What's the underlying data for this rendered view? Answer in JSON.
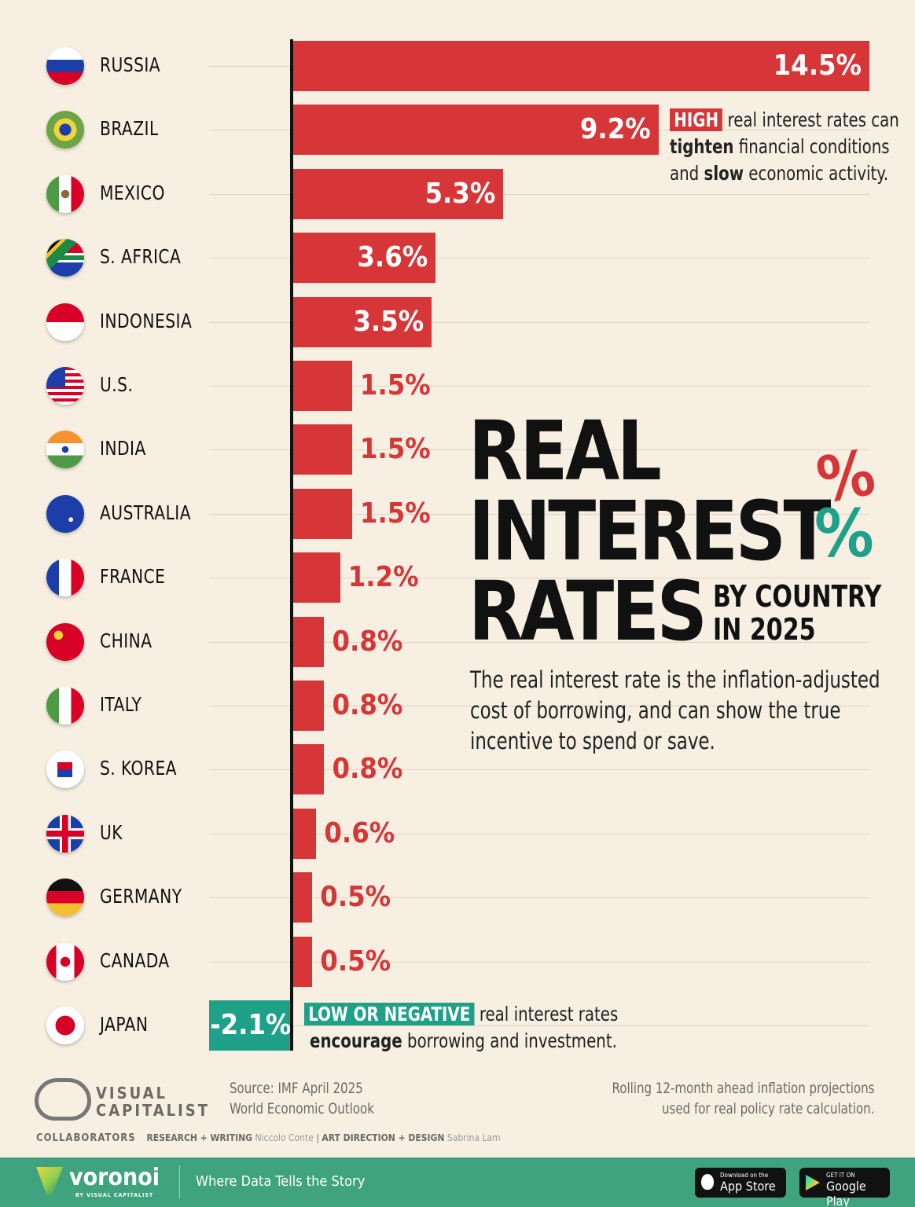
{
  "chart_data": {
    "type": "bar",
    "orientation": "horizontal",
    "title": "REAL INTEREST RATES",
    "subtitle": "BY COUNTRY IN 2025",
    "categories": [
      "RUSSIA",
      "BRAZIL",
      "MEXICO",
      "S. AFRICA",
      "INDONESIA",
      "U.S.",
      "INDIA",
      "AUSTRALIA",
      "FRANCE",
      "CHINA",
      "ITALY",
      "S. KOREA",
      "UK",
      "GERMANY",
      "CANADA",
      "JAPAN"
    ],
    "values": [
      14.5,
      9.2,
      5.3,
      3.6,
      3.5,
      1.5,
      1.5,
      1.5,
      1.2,
      0.8,
      0.8,
      0.8,
      0.6,
      0.5,
      0.5,
      -2.1
    ],
    "labels": [
      "14.5%",
      "9.2%",
      "5.3%",
      "3.6%",
      "3.5%",
      "1.5%",
      "1.5%",
      "1.5%",
      "1.2%",
      "0.8%",
      "0.8%",
      "0.8%",
      "0.6%",
      "0.5%",
      "0.5%",
      "-2.1%"
    ],
    "flags": [
      "russia",
      "brazil",
      "mexico",
      "south-africa",
      "indonesia",
      "usa",
      "india",
      "australia",
      "france",
      "china",
      "italy",
      "south-korea",
      "uk",
      "germany",
      "canada",
      "japan"
    ],
    "xlim": [
      -2.1,
      14.5
    ],
    "colors": {
      "positive": "#d63638",
      "negative": "#1fa088"
    }
  },
  "title": {
    "line1": "REAL",
    "line2": "INTEREST",
    "line3": "RATES",
    "by": "BY COUNTRY",
    "year": "IN 2025",
    "pct": "%"
  },
  "description": "The real interest rate is the inflation-adjusted cost of borrowing, and can show the true incentive to spend or save.",
  "desc_lines": [
    "The real interest rate is the inflation-adjusted",
    "cost of borrowing, and can show the true",
    "incentive to spend or save."
  ],
  "high_note": {
    "tag": "HIGH",
    "l1": "real interest rates can",
    "b2": "tighten",
    "l2": "financial conditions",
    "l3a": "and",
    "b3": "slow",
    "l3": "economic activity."
  },
  "low_note": {
    "tag": "LOW OR NEGATIVE",
    "l1": "real interest rates",
    "b2": "encourage",
    "l2": "borrowing and investment."
  },
  "footer": {
    "logo": "VISUAL CAPITALIST",
    "source1": "Source: IMF April 2025",
    "source2": "World Economic Outlook",
    "note1": "Rolling 12-month ahead inflation projections",
    "note2": "used for real policy rate calculation.",
    "collab": "COLLABORATORS",
    "rw": "RESEARCH + WRITING",
    "rw_name": "Niccolo Conte",
    "ad": "ART DIRECTION + DESIGN",
    "ad_name": "Sabrina Lam"
  },
  "banner": {
    "brand": "voronoi",
    "by": "BY VISUAL CAPITALIST",
    "tagline": "Where Data Tells the Story",
    "appstore_small": "Download on the",
    "appstore": "App Store",
    "gplay_small": "GET IT ON",
    "gplay": "Google Play"
  }
}
